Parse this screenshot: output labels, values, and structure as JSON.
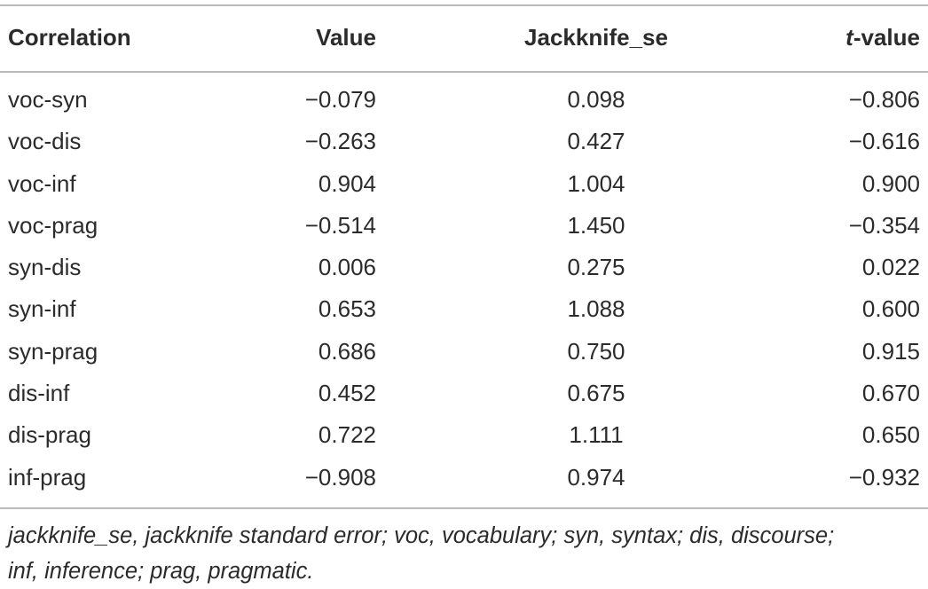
{
  "table": {
    "headers": {
      "correlation": "Correlation",
      "value": "Value",
      "jackknife_se": "Jackknife_se",
      "t_prefix": "t",
      "t_suffix": "-value"
    },
    "rows": [
      {
        "correlation": "voc-syn",
        "value": "−0.079",
        "jackknife_se": "0.098",
        "t_value": "−0.806"
      },
      {
        "correlation": "voc-dis",
        "value": "−0.263",
        "jackknife_se": "0.427",
        "t_value": "−0.616"
      },
      {
        "correlation": "voc-inf",
        "value": "0.904",
        "jackknife_se": "1.004",
        "t_value": "0.900"
      },
      {
        "correlation": "voc-prag",
        "value": "−0.514",
        "jackknife_se": "1.450",
        "t_value": "−0.354"
      },
      {
        "correlation": "syn-dis",
        "value": "0.006",
        "jackknife_se": "0.275",
        "t_value": "0.022"
      },
      {
        "correlation": "syn-inf",
        "value": "0.653",
        "jackknife_se": "1.088",
        "t_value": "0.600"
      },
      {
        "correlation": "syn-prag",
        "value": "0.686",
        "jackknife_se": "0.750",
        "t_value": "0.915"
      },
      {
        "correlation": "dis-inf",
        "value": "0.452",
        "jackknife_se": "0.675",
        "t_value": "0.670"
      },
      {
        "correlation": "dis-prag",
        "value": "0.722",
        "jackknife_se": "1.111",
        "t_value": "0.650"
      },
      {
        "correlation": "inf-prag",
        "value": "−0.908",
        "jackknife_se": "0.974",
        "t_value": "−0.932"
      }
    ],
    "footnote_line1": "jackknife_se, jackknife standard error; voc, vocabulary; syn, syntax; dis, discourse;",
    "footnote_line2": "inf, inference; prag, pragmatic."
  }
}
